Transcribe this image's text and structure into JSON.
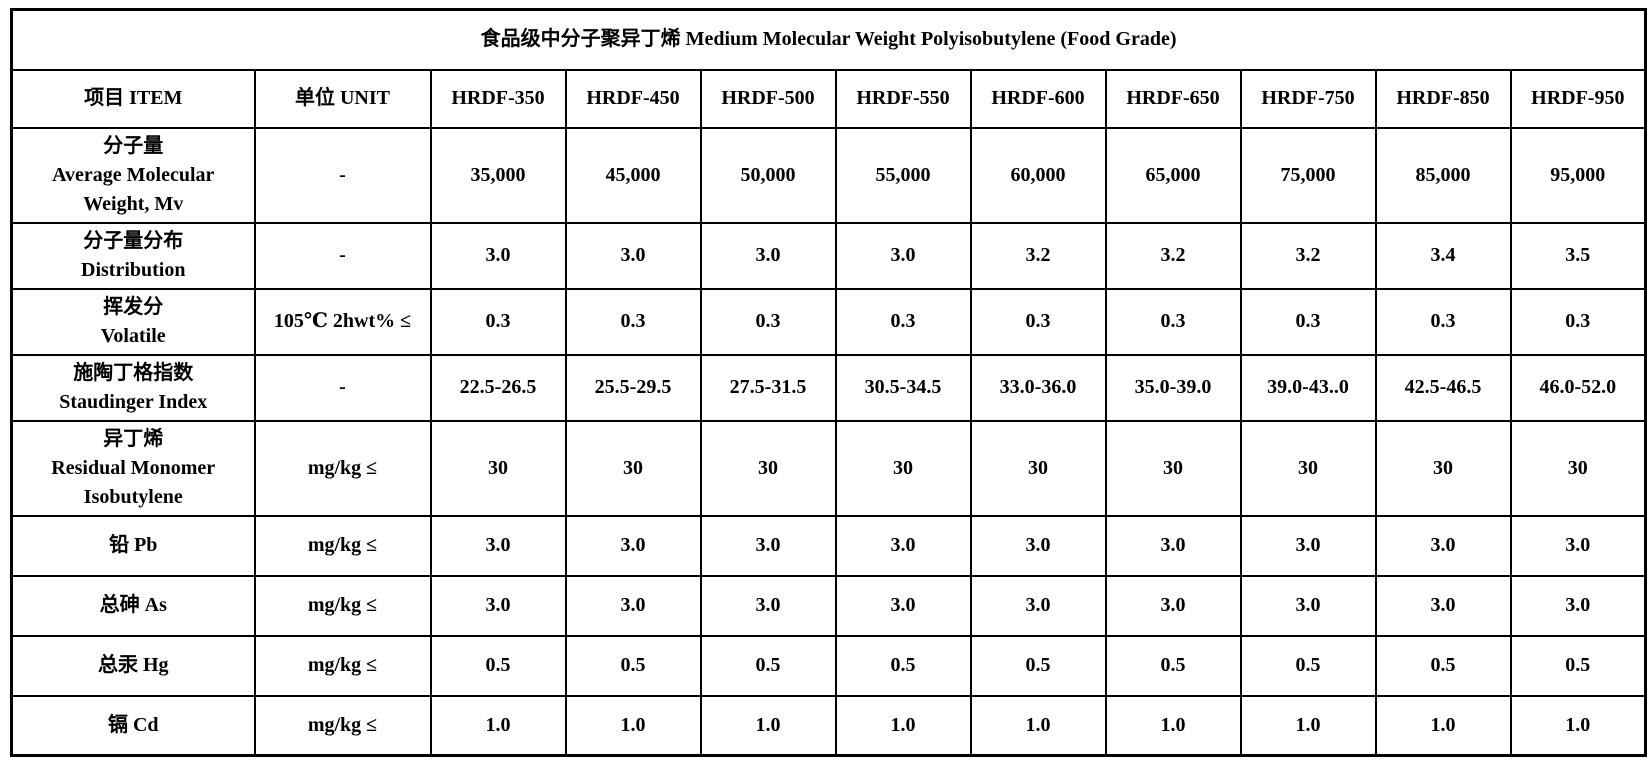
{
  "title": "食品级中分子聚异丁烯 Medium Molecular Weight Polyisobutylene (Food Grade)",
  "colors": {
    "border": "#000000",
    "text": "#000000",
    "background": "#ffffff"
  },
  "table": {
    "header": {
      "item": "项目 ITEM",
      "unit": "单位  UNIT",
      "products": [
        "HRDF-350",
        "HRDF-450",
        "HRDF-500",
        "HRDF-550",
        "HRDF-600",
        "HRDF-650",
        "HRDF-750",
        "HRDF-850",
        "HRDF-950"
      ]
    },
    "rows": [
      {
        "item_lines": [
          "分子量",
          "Average Molecular",
          "Weight, Mv"
        ],
        "unit": "-",
        "values": [
          "35,000",
          "45,000",
          "50,000",
          "55,000",
          "60,000",
          "65,000",
          "75,000",
          "85,000",
          "95,000"
        ]
      },
      {
        "item_lines": [
          "分子量分布",
          "Distribution"
        ],
        "unit": "-",
        "values": [
          "3.0",
          "3.0",
          "3.0",
          "3.0",
          "3.2",
          "3.2",
          "3.2",
          "3.4",
          "3.5"
        ]
      },
      {
        "item_lines": [
          "挥发分",
          "Volatile"
        ],
        "unit": "105℃ 2hwt%  ≤",
        "values": [
          "0.3",
          "0.3",
          "0.3",
          "0.3",
          "0.3",
          "0.3",
          "0.3",
          "0.3",
          "0.3"
        ]
      },
      {
        "item_lines": [
          "施陶丁格指数",
          "Staudinger Index"
        ],
        "unit": "-",
        "values": [
          "22.5-26.5",
          "25.5-29.5",
          "27.5-31.5",
          "30.5-34.5",
          "33.0-36.0",
          "35.0-39.0",
          "39.0-43..0",
          "42.5-46.5",
          "46.0-52.0"
        ]
      },
      {
        "item_lines": [
          "异丁烯",
          "Residual Monomer",
          "Isobutylene"
        ],
        "unit": "mg/kg ≤",
        "values": [
          "30",
          "30",
          "30",
          "30",
          "30",
          "30",
          "30",
          "30",
          "30"
        ]
      },
      {
        "item_lines": [
          "铅 Pb"
        ],
        "unit": "mg/kg ≤",
        "values": [
          "3.0",
          "3.0",
          "3.0",
          "3.0",
          "3.0",
          "3.0",
          "3.0",
          "3.0",
          "3.0"
        ]
      },
      {
        "item_lines": [
          "总砷 As"
        ],
        "unit": "mg/kg ≤",
        "values": [
          "3.0",
          "3.0",
          "3.0",
          "3.0",
          "3.0",
          "3.0",
          "3.0",
          "3.0",
          "3.0"
        ]
      },
      {
        "item_lines": [
          "总汞 Hg"
        ],
        "unit": "mg/kg ≤",
        "values": [
          "0.5",
          "0.5",
          "0.5",
          "0.5",
          "0.5",
          "0.5",
          "0.5",
          "0.5",
          "0.5"
        ]
      },
      {
        "item_lines": [
          "镉 Cd"
        ],
        "unit": "mg/kg ≤",
        "values": [
          "1.0",
          "1.0",
          "1.0",
          "1.0",
          "1.0",
          "1.0",
          "1.0",
          "1.0",
          "1.0"
        ]
      }
    ]
  }
}
